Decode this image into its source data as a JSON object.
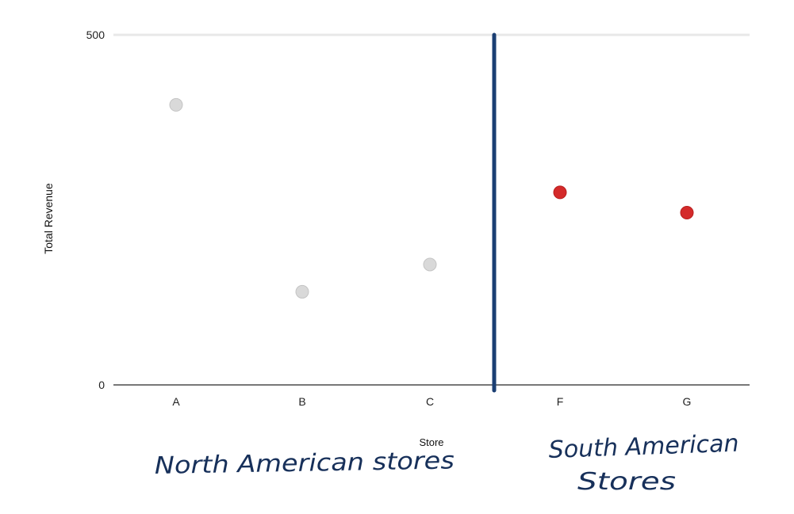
{
  "chart_data": {
    "type": "scatter",
    "title": "",
    "xlabel": "Store",
    "ylabel": "Total Revenue",
    "ylim": [
      0,
      500
    ],
    "yticks": [
      "0",
      "500"
    ],
    "categories": [
      "A",
      "B",
      "C",
      "F",
      "G"
    ],
    "series": [
      {
        "values": [
          400,
          133,
          172
        ],
        "color": "#d9d9d9"
      },
      {
        "values": [
          275,
          246
        ],
        "color": "#d42a2a"
      }
    ],
    "annotations": {
      "divider_color": "#1b3f73",
      "north_label": "North American stores",
      "south_label_line1": "South American",
      "south_label_line2": "Stores",
      "annotation_color": "#17305a"
    },
    "grid": true
  }
}
